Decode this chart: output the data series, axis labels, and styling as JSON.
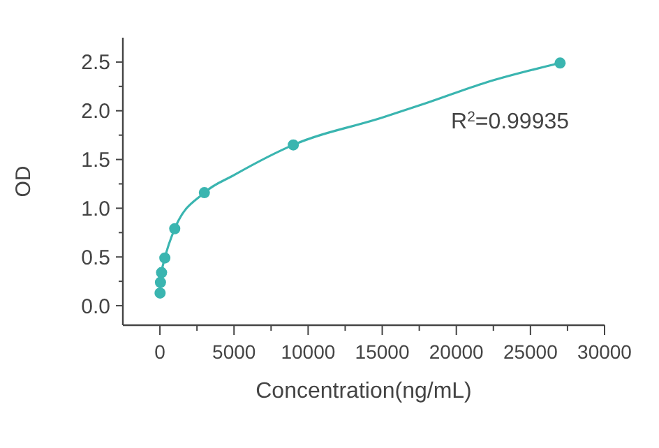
{
  "chart_data": {
    "type": "scatter",
    "xlabel": "Concentration(ng/mL)",
    "ylabel": "OD",
    "xlim": [
      -2500,
      30000
    ],
    "ylim": [
      -0.2,
      2.75
    ],
    "xticks": [
      0,
      {
        "value": 2500,
        "label": null
      },
      5000,
      {
        "value": 7500,
        "label": null
      },
      10000,
      {
        "value": 12500,
        "label": null
      },
      15000,
      {
        "value": 17500,
        "label": null
      },
      20000,
      {
        "value": 22500,
        "label": null
      },
      25000,
      {
        "value": 27500,
        "label": null
      },
      30000
    ],
    "yticks": [
      {
        "value": 0,
        "label": "0.0"
      },
      {
        "value": 0.25,
        "label": null
      },
      {
        "value": 0.5,
        "label": "0.5"
      },
      {
        "value": 0.75,
        "label": null
      },
      {
        "value": 1,
        "label": "1.0"
      },
      {
        "value": 1.25,
        "label": null
      },
      {
        "value": 1.5,
        "label": "1.5"
      },
      {
        "value": 1.75,
        "label": null
      },
      {
        "value": 2,
        "label": "2.0"
      },
      {
        "value": 2.25,
        "label": null
      },
      {
        "value": 2.5,
        "label": "2.5"
      }
    ],
    "grid": false,
    "marker": "circle",
    "series": [
      {
        "type": "line",
        "marker": "none",
        "color": "#3ab5b0",
        "x": [
          12,
          37,
          111,
          333,
          1000,
          3000,
          5000,
          9000,
          15000,
          18000,
          22000,
          27000
        ],
        "values": [
          0.13,
          0.24,
          0.34,
          0.49,
          0.79,
          1.16,
          1.34,
          1.65,
          1.93,
          2.08,
          2.29,
          2.49
        ]
      },
      {
        "color": "#3ab5b0",
        "x": [
          12,
          37,
          111,
          333,
          1000,
          3000,
          9000,
          27000
        ],
        "values": [
          0.13,
          0.24,
          0.34,
          0.49,
          0.79,
          1.16,
          1.65,
          2.49
        ]
      }
    ],
    "annotations": [
      "R$^{2}$=0.99935"
    ]
  }
}
